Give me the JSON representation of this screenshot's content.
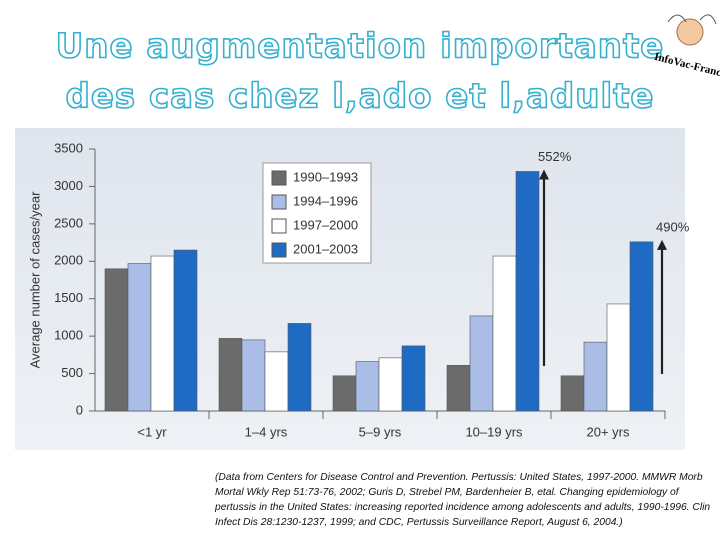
{
  "slide": {
    "title_lines": [
      "Une augmentation importante",
      "des cas chez l,ado et l,adulte"
    ],
    "logo": "InfoVac-France",
    "citation": [
      "(Data from Centers for Disease Control and Prevention. Pertussis: United States, 1997-2000. MMWR Morb",
      "Mortal Wkly Rep 51:73-76, 2002; Guris D, Strebel PM, Bardenheier B, etal. Changing epidemiology of",
      "pertussis in the United States: increasing reported incidence among adolescents and adults, 1990-1996. Clin",
      "Infect Dis 28:1230-1237, 1999; and CDC, Pertussis Surveillance Report, August 6, 2004.)"
    ]
  },
  "chart_data": {
    "type": "bar",
    "y_label": "Average number of cases/year",
    "categories": [
      "<1 yr",
      "1–4 yrs",
      "5–9 yrs",
      "10–19 yrs",
      "20+ yrs"
    ],
    "series": [
      {
        "name": "1990–1993",
        "color": "#6b6b6b",
        "values": [
          1900,
          970,
          470,
          610,
          470
        ]
      },
      {
        "name": "1994–1996",
        "color": "#aabde6",
        "values": [
          1970,
          950,
          660,
          1270,
          920
        ]
      },
      {
        "name": "1997–2000",
        "color": "#ffffff",
        "values": [
          2070,
          790,
          710,
          2070,
          1430
        ]
      },
      {
        "name": "2001–2003",
        "color": "#1f6bc4",
        "values": [
          2150,
          1170,
          870,
          3200,
          2260
        ]
      }
    ],
    "annotations": [
      "552%",
      "490%"
    ],
    "ylim": [
      0,
      3500
    ],
    "yticks": [
      0,
      500,
      1000,
      1500,
      2000,
      2500,
      3000,
      3500
    ],
    "grid": false
  }
}
